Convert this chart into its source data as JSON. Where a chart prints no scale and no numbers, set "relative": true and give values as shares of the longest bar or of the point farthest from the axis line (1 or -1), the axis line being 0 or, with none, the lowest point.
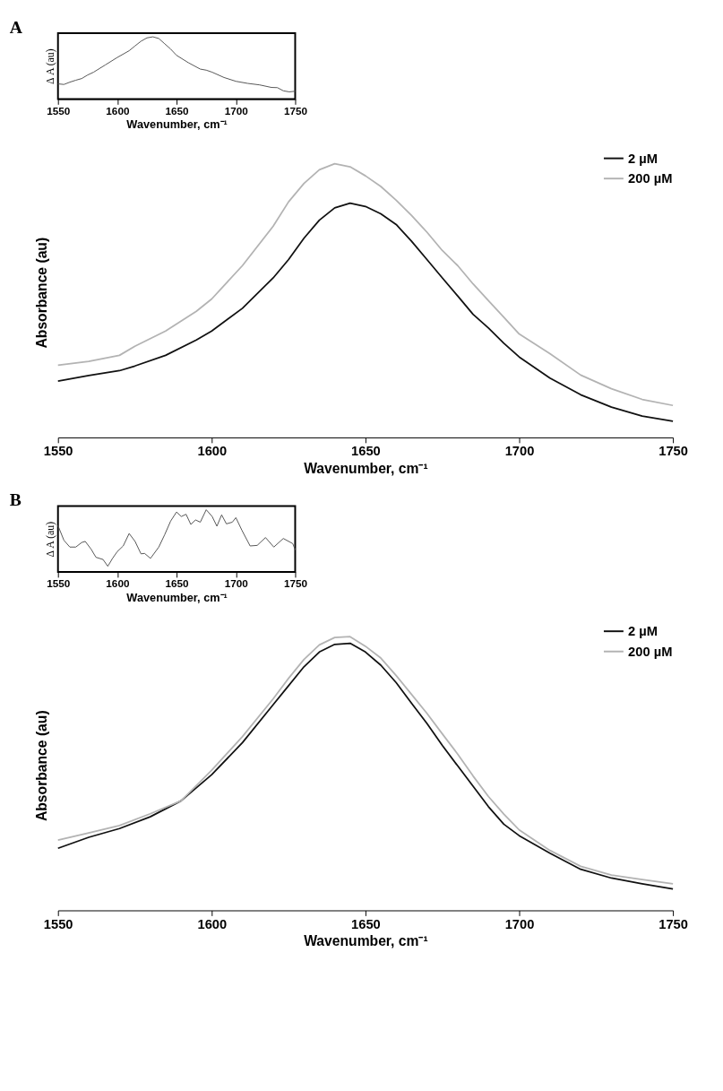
{
  "chart_data": [
    {
      "type": "line",
      "title": "A",
      "xlabel": "Wavenumber, cm⁻¹",
      "ylabel": "Δ A (au)",
      "relative": true,
      "xlim": [
        1550,
        1750
      ],
      "xticks": [
        1550,
        1600,
        1650,
        1700,
        1750
      ],
      "tick_labels": "x",
      "grid": false,
      "x": [
        1550,
        1555,
        1560,
        1565,
        1570,
        1575,
        1580,
        1590,
        1600,
        1610,
        1615,
        1620,
        1625,
        1630,
        1635,
        1640,
        1645,
        1650,
        1660,
        1670,
        1675,
        1680,
        1690,
        1700,
        1710,
        1720,
        1730,
        1735,
        1740,
        1745,
        1750
      ],
      "series": [
        {
          "color": "#555555",
          "values": [
            0.244,
            0.234,
            0.271,
            0.302,
            0.329,
            0.386,
            0.431,
            0.549,
            0.668,
            0.776,
            0.854,
            0.929,
            0.983,
            1.0,
            0.973,
            0.888,
            0.803,
            0.702,
            0.583,
            0.481,
            0.464,
            0.431,
            0.346,
            0.285,
            0.251,
            0.227,
            0.186,
            0.183,
            0.132,
            0.115,
            0.125
          ]
        }
      ]
    },
    {
      "type": "line",
      "xlabel": "Wavenumber, cm⁻¹",
      "ylabel": "Absorbance (au)",
      "relative": true,
      "xlim": [
        1550,
        1750
      ],
      "xticks": [
        1550,
        1600,
        1650,
        1700,
        1750
      ],
      "tick_labels": "x",
      "grid": false,
      "legend": "top right",
      "x": [
        1550,
        1560,
        1570,
        1575,
        1585,
        1595,
        1600,
        1610,
        1620,
        1625,
        1630,
        1635,
        1640,
        1645,
        1650,
        1655,
        1660,
        1665,
        1670,
        1675,
        1680,
        1685,
        1690,
        1695,
        1700,
        1710,
        1720,
        1730,
        1740,
        1750
      ],
      "series": [
        {
          "name": "2 µM",
          "color": "#111111",
          "values": [
            0.206,
            0.226,
            0.244,
            0.261,
            0.3,
            0.356,
            0.389,
            0.472,
            0.583,
            0.65,
            0.728,
            0.794,
            0.839,
            0.856,
            0.844,
            0.817,
            0.778,
            0.717,
            0.65,
            0.583,
            0.517,
            0.45,
            0.4,
            0.344,
            0.294,
            0.217,
            0.156,
            0.111,
            0.078,
            0.059
          ]
        },
        {
          "name": "200 µM",
          "color": "#b3b3b3",
          "values": [
            0.264,
            0.278,
            0.3,
            0.333,
            0.389,
            0.461,
            0.506,
            0.628,
            0.772,
            0.861,
            0.928,
            0.978,
            1.0,
            0.989,
            0.956,
            0.917,
            0.867,
            0.811,
            0.75,
            0.683,
            0.628,
            0.561,
            0.5,
            0.439,
            0.378,
            0.306,
            0.228,
            0.178,
            0.139,
            0.117
          ]
        }
      ]
    },
    {
      "type": "line",
      "title": "B",
      "xlabel": "Wavenumber, cm⁻¹",
      "ylabel": "Δ A (au)",
      "relative": true,
      "xlim": [
        1550,
        1750
      ],
      "xticks": [
        1550,
        1600,
        1650,
        1700,
        1750
      ],
      "tick_labels": "x",
      "grid": false,
      "x": [
        1550,
        1555,
        1560,
        1565,
        1570,
        1573,
        1578,
        1582,
        1588,
        1592,
        1596,
        1600,
        1605,
        1610,
        1615,
        1620,
        1623,
        1628,
        1635,
        1640,
        1645,
        1650,
        1654,
        1658,
        1662,
        1666,
        1670,
        1675,
        1680,
        1684,
        1688,
        1692,
        1697,
        1700,
        1705,
        1712,
        1718,
        1725,
        1732,
        1740,
        1748,
        1750
      ],
      "series": [
        {
          "color": "#555555",
          "values": [
            0.745,
            0.509,
            0.4,
            0.4,
            0.473,
            0.491,
            0.364,
            0.236,
            0.2,
            0.091,
            0.218,
            0.327,
            0.418,
            0.618,
            0.491,
            0.291,
            0.298,
            0.218,
            0.4,
            0.6,
            0.818,
            0.964,
            0.891,
            0.927,
            0.764,
            0.836,
            0.8,
            1.0,
            0.891,
            0.735,
            0.918,
            0.773,
            0.8,
            0.873,
            0.673,
            0.418,
            0.427,
            0.553,
            0.4,
            0.538,
            0.455,
            0.356
          ]
        }
      ]
    },
    {
      "type": "line",
      "xlabel": "Wavenumber, cm⁻¹",
      "ylabel": "Absorbance (au)",
      "relative": true,
      "xlim": [
        1550,
        1750
      ],
      "xticks": [
        1550,
        1600,
        1650,
        1700,
        1750
      ],
      "tick_labels": "x",
      "grid": false,
      "legend": "top right",
      "x": [
        1550,
        1560,
        1570,
        1580,
        1590,
        1600,
        1610,
        1620,
        1625,
        1630,
        1635,
        1640,
        1645,
        1650,
        1655,
        1660,
        1665,
        1670,
        1675,
        1680,
        1685,
        1690,
        1695,
        1700,
        1710,
        1720,
        1730,
        1740,
        1750
      ],
      "series": [
        {
          "name": "2 µM",
          "color": "#111111",
          "values": [
            0.227,
            0.267,
            0.299,
            0.342,
            0.4,
            0.496,
            0.613,
            0.752,
            0.821,
            0.89,
            0.944,
            0.972,
            0.976,
            0.944,
            0.896,
            0.832,
            0.757,
            0.683,
            0.603,
            0.528,
            0.454,
            0.379,
            0.315,
            0.273,
            0.209,
            0.15,
            0.118,
            0.097,
            0.078
          ]
        },
        {
          "name": "200 µM",
          "color": "#b3b3b3",
          "values": [
            0.257,
            0.283,
            0.31,
            0.353,
            0.4,
            0.512,
            0.635,
            0.773,
            0.848,
            0.917,
            0.97,
            0.997,
            1.0,
            0.965,
            0.922,
            0.858,
            0.789,
            0.72,
            0.645,
            0.571,
            0.491,
            0.416,
            0.352,
            0.294,
            0.219,
            0.161,
            0.129,
            0.113,
            0.097
          ]
        }
      ]
    }
  ]
}
